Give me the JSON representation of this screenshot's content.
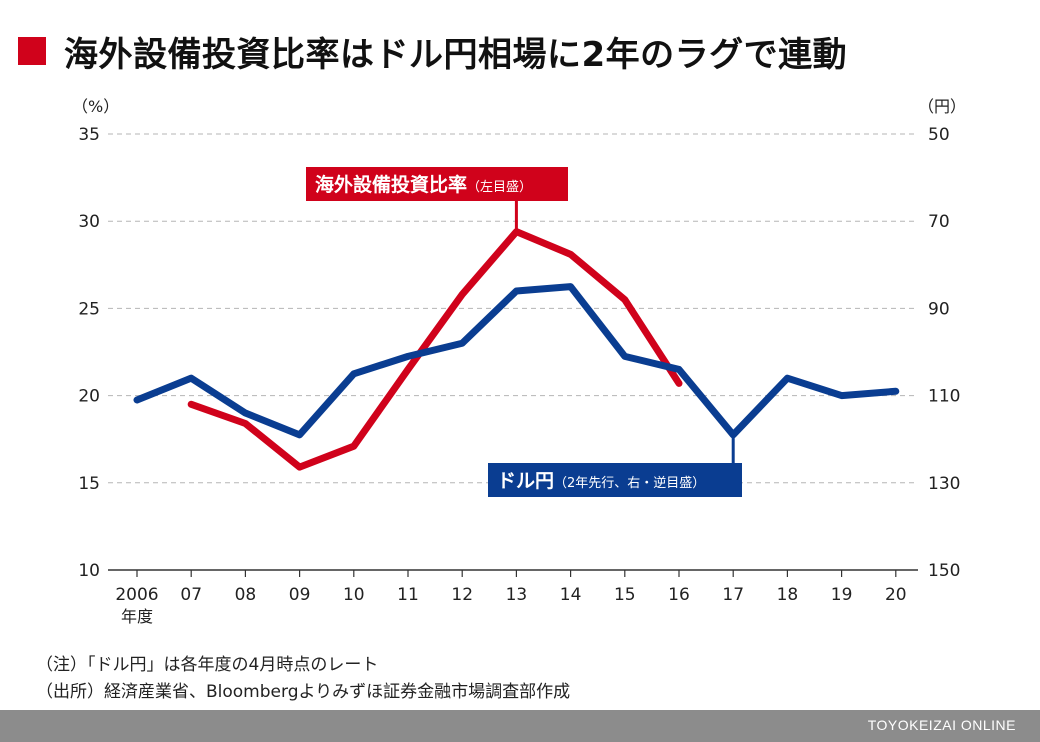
{
  "title": "海外設備投資比率はドル円相場に2年のラグで連動",
  "colors": {
    "accent": "#d0021b",
    "series_red": "#d0021b",
    "series_blue": "#0a3d91",
    "footer_bg": "#8c8c8c"
  },
  "chart_data": {
    "type": "line",
    "left_axis": {
      "unit": "（%）",
      "ticks": [
        10,
        15,
        20,
        25,
        30,
        35
      ],
      "range": [
        10,
        35
      ]
    },
    "right_axis": {
      "unit": "（円）",
      "ticks": [
        150,
        130,
        110,
        90,
        70,
        50
      ],
      "range": [
        150,
        50
      ],
      "reversed": true
    },
    "x_ticks": [
      "2006",
      "07",
      "08",
      "09",
      "10",
      "11",
      "12",
      "13",
      "14",
      "15",
      "16",
      "17",
      "18",
      "19",
      "20"
    ],
    "x_sublabel": "年度",
    "grid": true,
    "series": [
      {
        "name": "海外設備投資比率",
        "label_sub": "（左目盛）",
        "axis": "left",
        "x": [
          "07",
          "08",
          "09",
          "10",
          "11",
          "12",
          "13",
          "14",
          "15",
          "16"
        ],
        "y": [
          19.5,
          18.4,
          15.9,
          17.1,
          21.5,
          25.8,
          29.4,
          28.1,
          25.5,
          20.7
        ]
      },
      {
        "name": "ドル円",
        "label_sub": "（2年先行、右・逆目盛）",
        "axis": "right",
        "x": [
          "2006",
          "07",
          "08",
          "09",
          "10",
          "11",
          "12",
          "13",
          "14",
          "15",
          "16",
          "17",
          "18",
          "19",
          "20"
        ],
        "y": [
          111,
          106,
          114,
          119,
          105,
          101,
          98,
          86,
          85,
          101,
          104,
          119,
          106,
          110,
          109
        ]
      }
    ]
  },
  "notes": [
    "（注）「ドル円」は各年度の4月時点のレート",
    "（出所）経済産業省、Bloombergよりみずほ証券金融市場調査部作成"
  ],
  "footer": "TOYOKEIZAI ONLINE"
}
